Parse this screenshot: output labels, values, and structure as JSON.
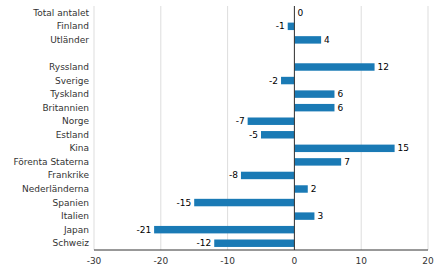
{
  "chart_data": {
    "type": "bar",
    "orientation": "horizontal",
    "categories": [
      "Total antalet",
      "Finland",
      "Utländer",
      null,
      "Ryssland",
      "Sverige",
      "Tyskland",
      "Britannien",
      "Norge",
      "Estland",
      "Kina",
      "Förenta Staterna",
      "Frankrike",
      "Nederländerna",
      "Spanien",
      "Italien",
      "Japan",
      "Schweiz"
    ],
    "values": [
      0,
      -1,
      4,
      null,
      12,
      -2,
      6,
      6,
      -7,
      -5,
      15,
      7,
      -8,
      2,
      -15,
      3,
      -21,
      -12
    ],
    "color": "#1a7ab5",
    "xlim": [
      -30,
      20
    ],
    "xticks": [
      -30,
      -20,
      -10,
      0,
      10,
      20
    ],
    "grid": true,
    "data_labels": true
  }
}
